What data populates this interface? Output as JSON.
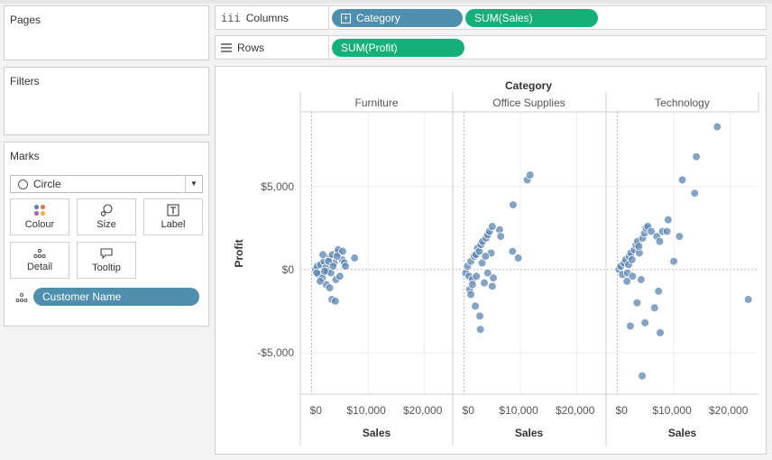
{
  "panels": {
    "pages": {
      "title": "Pages"
    },
    "filters": {
      "title": "Filters"
    },
    "marks": {
      "title": "Marks",
      "mark_type": "Circle",
      "buttons": {
        "colour": "Colour",
        "size": "Size",
        "label": "Label",
        "detail": "Detail",
        "tooltip": "Tooltip"
      },
      "detail_field": "Customer Name"
    }
  },
  "shelves": {
    "columns": {
      "label": "Columns",
      "pills": [
        "Category",
        "SUM(Sales)"
      ]
    },
    "rows": {
      "label": "Rows",
      "pills": [
        "SUM(Profit)"
      ]
    }
  },
  "colors": {
    "dimension_pill": "#4d8fac",
    "measure_pill": "#15b079",
    "mark": "#5b84b1"
  },
  "chart_data": {
    "type": "scatter",
    "title": "Category",
    "xlabel": "Sales",
    "ylabel": "Profit",
    "panes": [
      "Furniture",
      "Office Supplies",
      "Technology"
    ],
    "xlim": [
      -2000,
      25000
    ],
    "ylim": [
      -7500,
      9500
    ],
    "x_ticks": [
      "$0",
      "$10,000",
      "$20,000"
    ],
    "y_ticks": [
      "$5,000",
      "$0",
      "-$5,000"
    ],
    "series": [
      {
        "name": "Furniture",
        "points": [
          [
            700,
            0
          ],
          [
            1000,
            200
          ],
          [
            1300,
            -300
          ],
          [
            1600,
            300
          ],
          [
            1900,
            -500
          ],
          [
            2200,
            500
          ],
          [
            2500,
            100
          ],
          [
            2800,
            -100
          ],
          [
            3100,
            700
          ],
          [
            3400,
            -200
          ],
          [
            3700,
            900
          ],
          [
            4000,
            400
          ],
          [
            4300,
            -600
          ],
          [
            4700,
            1000
          ],
          [
            5000,
            -400
          ],
          [
            5400,
            600
          ],
          [
            5800,
            400
          ],
          [
            2000,
            900
          ],
          [
            2600,
            -900
          ],
          [
            3200,
            -1100
          ],
          [
            3600,
            -1800
          ],
          [
            4200,
            -1900
          ],
          [
            6000,
            200
          ],
          [
            7600,
            700
          ],
          [
            4700,
            1200
          ],
          [
            5500,
            1100
          ],
          [
            3000,
            500
          ],
          [
            1500,
            -700
          ],
          [
            900,
            -200
          ],
          [
            2300,
            -100
          ],
          [
            3800,
            200
          ],
          [
            4500,
            800
          ]
        ]
      },
      {
        "name": "Office Supplies",
        "points": [
          [
            300,
            -200
          ],
          [
            600,
            200
          ],
          [
            900,
            -400
          ],
          [
            1200,
            500
          ],
          [
            1500,
            -600
          ],
          [
            1800,
            800
          ],
          [
            2100,
            900
          ],
          [
            2400,
            1300
          ],
          [
            2700,
            1100
          ],
          [
            3000,
            1500
          ],
          [
            3300,
            1700
          ],
          [
            3600,
            -800
          ],
          [
            3900,
            1900
          ],
          [
            4200,
            2100
          ],
          [
            4500,
            2300
          ],
          [
            5000,
            2600
          ],
          [
            1000,
            -1200
          ],
          [
            1200,
            -1500
          ],
          [
            2000,
            -2200
          ],
          [
            2800,
            -2800
          ],
          [
            2900,
            -3600
          ],
          [
            5000,
            -1000
          ],
          [
            5200,
            -500
          ],
          [
            4200,
            -200
          ],
          [
            4800,
            1000
          ],
          [
            6300,
            2400
          ],
          [
            6500,
            2000
          ],
          [
            8600,
            1100
          ],
          [
            9600,
            700
          ],
          [
            8700,
            3900
          ],
          [
            11200,
            5400
          ],
          [
            11700,
            5700
          ],
          [
            3200,
            400
          ],
          [
            3800,
            800
          ],
          [
            1500,
            -900
          ],
          [
            2200,
            -400
          ]
        ]
      },
      {
        "name": "Technology",
        "points": [
          [
            300,
            0
          ],
          [
            600,
            200
          ],
          [
            900,
            -300
          ],
          [
            1200,
            400
          ],
          [
            1500,
            600
          ],
          [
            1800,
            -200
          ],
          [
            2100,
            800
          ],
          [
            2400,
            1000
          ],
          [
            2700,
            -400
          ],
          [
            3000,
            1200
          ],
          [
            3300,
            1500
          ],
          [
            3600,
            1700
          ],
          [
            3900,
            1000
          ],
          [
            4200,
            -600
          ],
          [
            4500,
            1900
          ],
          [
            4800,
            2200
          ],
          [
            5100,
            2500
          ],
          [
            5400,
            2600
          ],
          [
            6000,
            2300
          ],
          [
            7000,
            2000
          ],
          [
            7500,
            1700
          ],
          [
            8000,
            2300
          ],
          [
            8800,
            2300
          ],
          [
            9000,
            3000
          ],
          [
            11000,
            2000
          ],
          [
            11500,
            5400
          ],
          [
            13700,
            4600
          ],
          [
            14000,
            6800
          ],
          [
            17700,
            8600
          ],
          [
            23200,
            -1800
          ],
          [
            7300,
            -1300
          ],
          [
            3500,
            -2000
          ],
          [
            2300,
            -3400
          ],
          [
            4900,
            -3200
          ],
          [
            6600,
            -2300
          ],
          [
            7600,
            -3800
          ],
          [
            4400,
            -6400
          ],
          [
            10000,
            500
          ],
          [
            1700,
            -700
          ],
          [
            2000,
            300
          ],
          [
            2600,
            600
          ],
          [
            3800,
            1400
          ]
        ]
      }
    ]
  }
}
